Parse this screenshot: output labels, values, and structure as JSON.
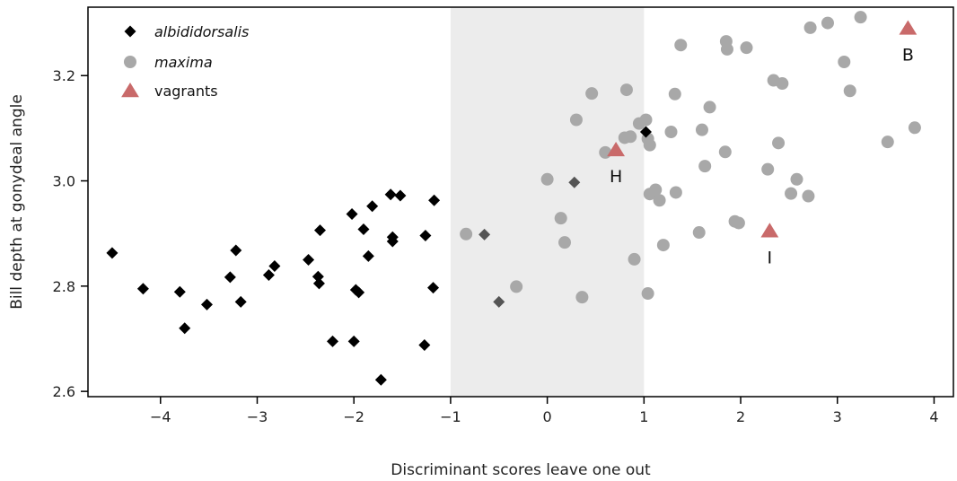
{
  "chart_data": {
    "type": "scatter",
    "xlabel": "Discriminant scores leave one out",
    "ylabel": "Bill depth at gonydeal angle",
    "xlim": [
      -4.75,
      4.2
    ],
    "ylim": [
      2.59,
      3.33
    ],
    "xticks": [
      -4,
      -3,
      -2,
      -1,
      0,
      1,
      2,
      3,
      4
    ],
    "xtick_labels": [
      "−4",
      "−3",
      "−2",
      "−1",
      "0",
      "1",
      "2",
      "3",
      "4"
    ],
    "yticks": [
      2.6,
      2.8,
      3.0,
      3.2
    ],
    "ytick_labels": [
      "2.6",
      "2.8",
      "3.0",
      "3.2"
    ],
    "shaded_region": {
      "x": [
        -1,
        1
      ],
      "color": "#ececec"
    },
    "grid": false,
    "legend_position": "top-left",
    "series": [
      {
        "name": "albididorsalis",
        "marker": "diamond",
        "color": "#000000",
        "points": [
          [
            -4.5,
            2.863
          ],
          [
            -4.18,
            2.795
          ],
          [
            -3.8,
            2.789
          ],
          [
            -3.75,
            2.72
          ],
          [
            -3.52,
            2.765
          ],
          [
            -3.28,
            2.817
          ],
          [
            -3.22,
            2.868
          ],
          [
            -3.17,
            2.77
          ],
          [
            -2.88,
            2.821
          ],
          [
            -2.82,
            2.838
          ],
          [
            -2.47,
            2.85
          ],
          [
            -2.37,
            2.818
          ],
          [
            -2.36,
            2.805
          ],
          [
            -2.35,
            2.906
          ],
          [
            -2.22,
            2.695
          ],
          [
            -2.02,
            2.937
          ],
          [
            -2.0,
            2.695
          ],
          [
            -1.98,
            2.793
          ],
          [
            -1.95,
            2.788
          ],
          [
            -1.9,
            2.908
          ],
          [
            -1.85,
            2.857
          ],
          [
            -1.81,
            2.952
          ],
          [
            -1.72,
            2.622
          ],
          [
            -1.62,
            2.974
          ],
          [
            -1.6,
            2.885
          ],
          [
            -1.6,
            2.893
          ],
          [
            -1.52,
            2.972
          ],
          [
            -1.27,
            2.688
          ],
          [
            -1.26,
            2.896
          ],
          [
            -1.18,
            2.797
          ],
          [
            -1.17,
            2.963
          ],
          [
            1.02,
            3.093
          ]
        ]
      },
      {
        "name": "",
        "marker": "diamond",
        "color": "#555555",
        "points": [
          [
            -0.65,
            2.898
          ],
          [
            -0.5,
            2.77
          ],
          [
            0.28,
            2.997
          ]
        ]
      },
      {
        "name": "maxima",
        "marker": "circle",
        "color": "#a8a8a8",
        "points": [
          [
            -0.84,
            2.899
          ],
          [
            -0.32,
            2.799
          ],
          [
            0.0,
            3.003
          ],
          [
            0.14,
            2.929
          ],
          [
            0.18,
            2.883
          ],
          [
            0.3,
            3.116
          ],
          [
            0.36,
            2.779
          ],
          [
            0.46,
            3.166
          ],
          [
            0.6,
            3.054
          ],
          [
            0.8,
            3.082
          ],
          [
            0.82,
            3.173
          ],
          [
            0.86,
            3.084
          ],
          [
            0.9,
            2.851
          ],
          [
            0.95,
            3.109
          ],
          [
            1.02,
            3.116
          ],
          [
            1.04,
            2.786
          ],
          [
            1.04,
            3.08
          ],
          [
            1.06,
            2.975
          ],
          [
            1.06,
            3.068
          ],
          [
            1.12,
            2.983
          ],
          [
            1.16,
            2.963
          ],
          [
            1.2,
            2.878
          ],
          [
            1.28,
            3.093
          ],
          [
            1.32,
            3.165
          ],
          [
            1.33,
            2.978
          ],
          [
            1.38,
            3.258
          ],
          [
            1.57,
            2.902
          ],
          [
            1.6,
            3.097
          ],
          [
            1.63,
            3.028
          ],
          [
            1.68,
            3.14
          ],
          [
            1.84,
            3.055
          ],
          [
            1.85,
            3.265
          ],
          [
            1.86,
            3.25
          ],
          [
            1.94,
            2.923
          ],
          [
            1.98,
            2.92
          ],
          [
            2.06,
            3.253
          ],
          [
            2.28,
            3.022
          ],
          [
            2.34,
            3.191
          ],
          [
            2.39,
            3.072
          ],
          [
            2.43,
            3.185
          ],
          [
            2.52,
            2.976
          ],
          [
            2.58,
            3.003
          ],
          [
            2.7,
            2.971
          ],
          [
            2.72,
            3.291
          ],
          [
            2.9,
            3.3
          ],
          [
            3.07,
            3.226
          ],
          [
            3.13,
            3.171
          ],
          [
            3.24,
            3.311
          ],
          [
            3.52,
            3.074
          ],
          [
            3.8,
            3.101
          ]
        ]
      },
      {
        "name": "vagrants",
        "marker": "triangle",
        "color": "#c96a6a",
        "points": [
          [
            0.71,
            3.059
          ],
          [
            2.3,
            2.905
          ],
          [
            3.73,
            3.29
          ]
        ]
      }
    ],
    "annotations": [
      {
        "text": "H",
        "x": 0.71,
        "y": 3.059
      },
      {
        "text": "I",
        "x": 2.3,
        "y": 2.905
      },
      {
        "text": "B",
        "x": 3.73,
        "y": 3.29
      }
    ]
  }
}
